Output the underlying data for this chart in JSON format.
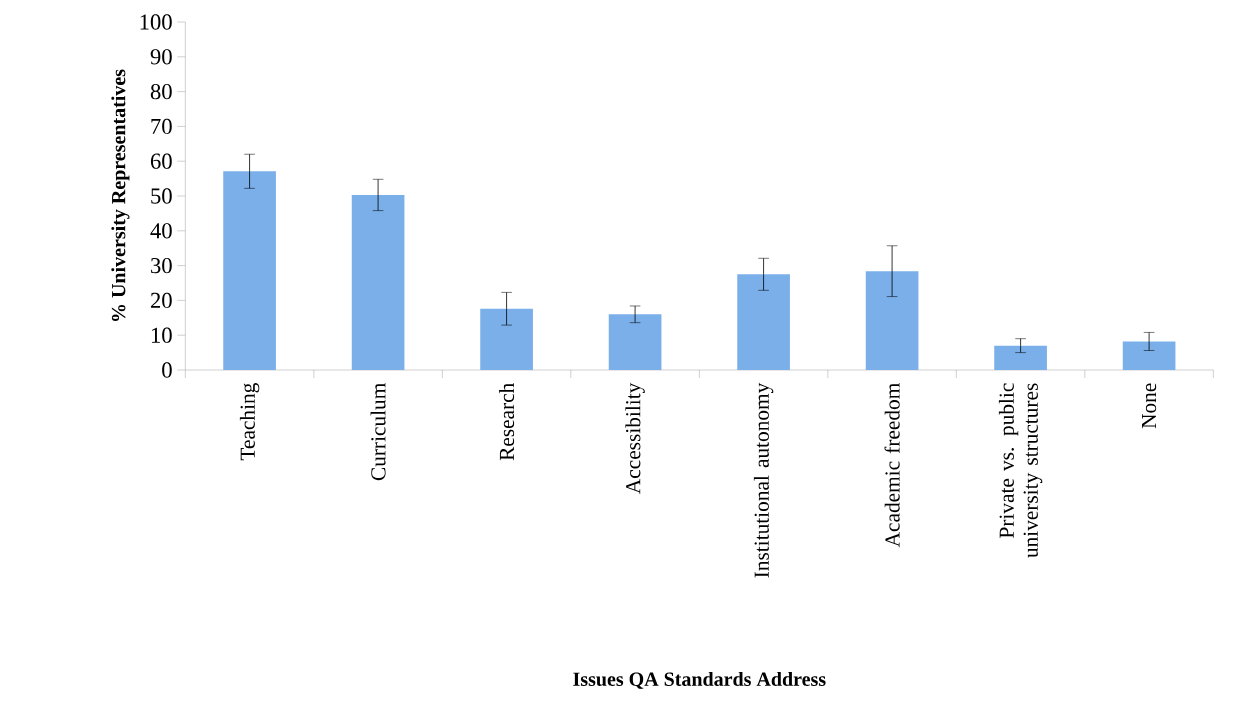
{
  "chart_data": {
    "type": "bar",
    "xlabel": "Issues QA Standards Address",
    "ylabel": "% University Representatives",
    "categories": [
      "Teaching",
      "Curriculum",
      "Research",
      "Accessibility",
      "Institutional autonomy",
      "Academic freedom",
      "Private vs. public university structures",
      "None"
    ],
    "values": [
      57.1,
      50.3,
      17.6,
      16.0,
      27.5,
      28.4,
      7.0,
      8.2
    ],
    "errors": [
      4.9,
      4.5,
      4.7,
      2.4,
      4.6,
      7.3,
      2.0,
      2.6
    ],
    "color": "#7aafea",
    "ylim": [
      0,
      100
    ],
    "yticks": [
      0,
      10,
      20,
      30,
      40,
      50,
      60,
      70,
      80,
      90,
      100
    ],
    "grid": false
  }
}
